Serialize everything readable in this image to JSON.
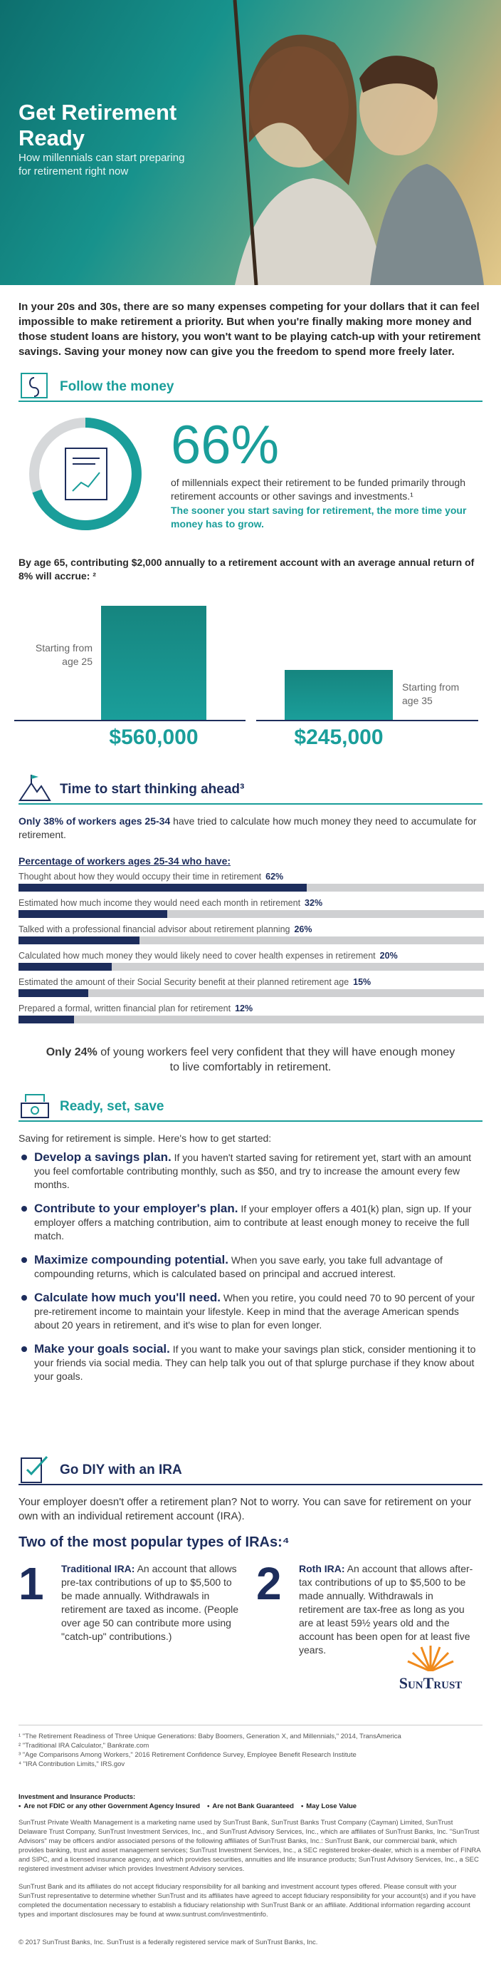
{
  "hero": {
    "title": "Get Retirement Ready",
    "subtitle": "How millennials can start preparing for retirement right now"
  },
  "intro": "In your 20s and 30s, there are so many expenses competing for your dollars that it can feel impossible to make retirement a priority. But when you're finally making more money and those student loans are history, you won't want to be playing catch-up with your retirement savings. Saving your money now can give you the freedom to spend more freely later.",
  "follow_the_money": {
    "heading": "Follow the money",
    "stat": "66%",
    "stat_text": "of millennials expect their retirement to be funded primarily through retirement accounts or other savings and investments.¹",
    "emphasis": "The sooner you start saving for retirement, the more time your money has to grow.",
    "chart_intro": "By age 65, contributing $2,000 annually to a retirement account with an average annual return of 8% will accrue: ²",
    "chart": {
      "type": "bar",
      "categories": [
        "Starting from age 25",
        "Starting from age 35"
      ],
      "values": [
        560000,
        245000
      ],
      "value_labels": [
        "$560,000",
        "$245,000"
      ],
      "color": "#1a9e9a"
    }
  },
  "thinking_ahead": {
    "heading": "Time to start thinking ahead³",
    "intro_bold": "Only 38% of workers ages 25-34",
    "intro_rest": " have tried to calculate how much money they need to accumulate for retirement.",
    "chart_title": "Percentage of workers ages 25-34 who have:",
    "xlim": [
      0,
      100
    ],
    "items": [
      {
        "label": "Thought about how they would occupy their time in retirement",
        "value": 62,
        "value_label": "62%"
      },
      {
        "label": "Estimated how much income they would need each month in retirement",
        "value": 32,
        "value_label": "32%"
      },
      {
        "label": "Talked with a professional financial advisor about retirement planning",
        "value": 26,
        "value_label": "26%"
      },
      {
        "label": "Calculated how much money they would likely need to cover health expenses in retirement",
        "value": 20,
        "value_label": "20%"
      },
      {
        "label": "Estimated the amount of their Social Security benefit at their planned retirement age",
        "value": 15,
        "value_label": "15%"
      },
      {
        "label": "Prepared a formal, written financial plan for retirement",
        "value": 12,
        "value_label": "12%"
      }
    ],
    "outro_bold": "Only 24%",
    "outro_rest": " of young workers feel very confident that they will have enough money to live comfortably in retirement."
  },
  "ready": {
    "heading": "Ready, set, save",
    "intro": "Saving for retirement is simple. Here's how to get started:",
    "bullets": [
      {
        "lead": "Develop a savings plan.",
        "text": " If you haven't started saving for retirement yet, start with an amount you feel comfortable contributing monthly, such as $50, and try to increase the amount every few months."
      },
      {
        "lead": "Contribute to your employer's plan.",
        "text": " If your employer offers a 401(k) plan, sign up. If your employer offers a matching contribution, aim to contribute at least enough money to receive the full match."
      },
      {
        "lead": "Maximize compounding potential.",
        "text": " When you save early, you take full advantage of compounding returns, which is calculated based on principal and accrued interest."
      },
      {
        "lead": "Calculate how much you'll need.",
        "text": " When you retire, you could need 70 to 90 percent of your pre-retirement income to maintain your lifestyle. Keep in mind that the average American spends about 20 years in retirement, and it's wise to plan for even longer."
      },
      {
        "lead": "Make your goals social.",
        "text": " If you want to make your savings plan stick, consider mentioning it to your friends via social media. They can help talk you out of that splurge purchase if they know about your goals."
      }
    ]
  },
  "diy": {
    "heading": "Go DIY with an IRA",
    "intro": "Your employer doesn't offer a retirement plan? Not to worry. You can save for retirement on your own with an individual retirement account (IRA).",
    "subheading": "Two of the most popular types of IRAs:⁴",
    "iras": [
      {
        "number": "1",
        "name": "Traditional IRA:",
        "text": " An account that allows pre-tax contributions of up to $5,500 to be made annually. Withdrawals in retirement are taxed as income. (People over age 50 can contribute more using \"catch-up\" contributions.)"
      },
      {
        "number": "2",
        "name": "Roth IRA:",
        "text": " An account that allows after-tax contributions of up to $5,500 to be made annually. Withdrawals in retirement are tax-free as long as you are at least 59½ years old and the account has been open for at least five years."
      }
    ]
  },
  "logo": "SunTrust",
  "footnotes": [
    "¹ \"The Retirement Readiness of Three Unique Generations: Baby Boomers, Generation X, and Millennials,\" 2014, TransAmerica",
    "² \"Traditional IRA Calculator,\" Bankrate.com",
    "³ \"Age Comparisons Among Workers,\" 2016 Retirement Confidence Survey, Employee Benefit Research Institute",
    "⁴ \"IRA Contribution Limits,\" IRS.gov"
  ],
  "disclosures": {
    "heading": "Investment and Insurance Products:",
    "bullets": [
      "Are not FDIC or any other Government Agency Insured",
      "Are not Bank Guaranteed",
      "May Lose Value"
    ],
    "paragraphs": [
      "SunTrust Private Wealth Management is a marketing name used by SunTrust Bank, SunTrust Banks Trust Company (Cayman) Limited, SunTrust Delaware Trust Company, SunTrust Investment Services, Inc., and SunTrust Advisory Services, Inc., which are affiliates of SunTrust Banks, Inc. \"SunTrust Advisors\" may be officers and/or associated persons of the following affiliates of SunTrust Banks, Inc.: SunTrust Bank, our commercial bank, which provides banking, trust and asset management services; SunTrust Investment Services, Inc., a SEC registered broker-dealer, which is a member of FINRA and SIPC, and a licensed insurance agency, and which provides securities, annuities and life insurance products; SunTrust Advisory Services, Inc., a SEC registered investment adviser which provides Investment Advisory services.",
      "SunTrust Bank and its affiliates do not accept fiduciary responsibility for all banking and investment account types offered. Please consult with your SunTrust representative to determine whether SunTrust and its affiliates have agreed to accept fiduciary responsibility for your account(s) and if you have completed the documentation necessary to establish a fiduciary relationship with SunTrust Bank or an affiliate. Additional information regarding account types and important disclosures may be found at www.suntrust.com/investmentinfo."
    ],
    "copyright": "© 2017 SunTrust Banks, Inc. SunTrust is a federally registered service mark of SunTrust Banks, Inc."
  }
}
